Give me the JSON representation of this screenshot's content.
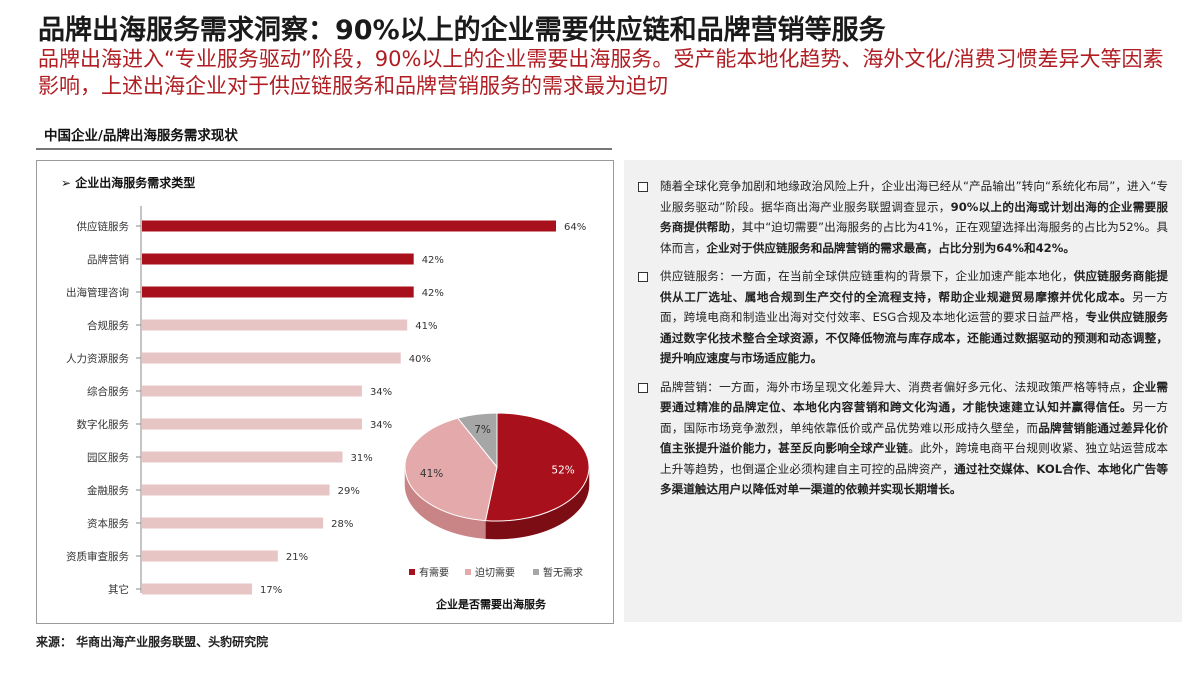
{
  "header": {
    "title": "品牌出海服务需求洞察：90%以上的企业需要供应链和品牌营销等服务",
    "subtitle": "品牌出海进入“专业服务驱动”阶段，90%以上的企业需要出海服务。受产能本地化趋势、海外文化/消费习惯差异大等因素影响，上述出海企业对于供应链服务和品牌营销服务的需求最为迫切"
  },
  "section_title": "中国企业/品牌出海服务需求现状",
  "chart_data": [
    {
      "type": "bar",
      "orientation": "horizontal",
      "title": "➢ 企业出海服务需求类型",
      "categories": [
        "供应链服务",
        "品牌营销",
        "出海管理咨询",
        "合规服务",
        "人力资源服务",
        "综合服务",
        "数字化服务",
        "园区服务",
        "金融服务",
        "资本服务",
        "资质审查服务",
        "其它"
      ],
      "values": [
        64,
        42,
        42,
        41,
        40,
        34,
        34,
        31,
        29,
        28,
        21,
        17
      ],
      "value_labels": [
        "64%",
        "42%",
        "42%",
        "41%",
        "40%",
        "34%",
        "34%",
        "31%",
        "29%",
        "28%",
        "21%",
        "17%"
      ],
      "highlight_count": 3,
      "xlim": [
        0,
        64
      ],
      "colors": {
        "highlight": "#a8111b",
        "normal": "#e8c5c5"
      }
    },
    {
      "type": "pie",
      "title": "企业是否需要出海服务",
      "slices": [
        {
          "label": "有需要",
          "value": 52,
          "text": "52%",
          "color": "#a8111b",
          "side": "#7c0d14"
        },
        {
          "label": "迫切需要",
          "value": 41,
          "text": "41%",
          "color": "#e4a9ab",
          "side": "#c98486"
        },
        {
          "label": "暂无需求",
          "value": 7,
          "text": "7%",
          "color": "#a6a6a6",
          "side": "#7f7f7f"
        }
      ],
      "legend_position": "bottom"
    }
  ],
  "right_panel": {
    "bullets": [
      {
        "segments": [
          {
            "text": "随着全球化竞争加剧和地缘政治风险上升，企业出海已经从“产品输出”转向“系统化布局”，进入“专业服务驱动”阶段。据华商出海产业服务联盟调查显示，",
            "bold": false
          },
          {
            "text": "90%以上的出海或计划出海的企业需要服务商提供帮助",
            "bold": true
          },
          {
            "text": "，其中“迫切需要”出海服务的占比为41%，正在观望选择出海服务的占比为52%。具体而言，",
            "bold": false
          },
          {
            "text": "企业对于供应链服务和品牌营销的需求最高，占比分别为64%和42%。",
            "bold": true
          }
        ]
      },
      {
        "segments": [
          {
            "text": "供应链服务：一方面，在当前全球供应链重构的背景下，企业加速产能本地化，",
            "bold": false
          },
          {
            "text": "供应链服务商能提供从工厂选址、属地合规到生产交付的全流程支持，帮助企业规避贸易摩擦并优化成本。",
            "bold": true
          },
          {
            "text": "另一方面，跨境电商和制造业出海对交付效率、ESG合规及本地化运营的要求日益严格，",
            "bold": false
          },
          {
            "text": "专业供应链服务通过数字化技术整合全球资源，不仅降低物流与库存成本，还能通过数据驱动的预测和动态调整，提升响应速度与市场适应能力。",
            "bold": true
          }
        ]
      },
      {
        "segments": [
          {
            "text": "品牌营销：一方面，海外市场呈现文化差异大、消费者偏好多元化、法规政策严格等特点，",
            "bold": false
          },
          {
            "text": "企业需要通过精准的品牌定位、本地化内容营销和跨文化沟通，才能快速建立认知并赢得信任。",
            "bold": true
          },
          {
            "text": "另一方面，国际市场竞争激烈，单纯依靠低价或产品优势难以形成持久壁垒，而",
            "bold": false
          },
          {
            "text": "品牌营销能通过差异化价值主张提升溢价能力，甚至反向影响全球产业链",
            "bold": true
          },
          {
            "text": "。此外，跨境电商平台规则收紧、独立站运营成本上升等趋势，也倒逼企业必须构建自主可控的品牌资产，",
            "bold": false
          },
          {
            "text": "通过社交媒体、KOL合作、本地化广告等多渠道触达用户以降低对单一渠道的依赖并实现长期增长。",
            "bold": true
          }
        ]
      }
    ]
  },
  "source": "来源： 华商出海产业服务联盟、头豹研究院"
}
